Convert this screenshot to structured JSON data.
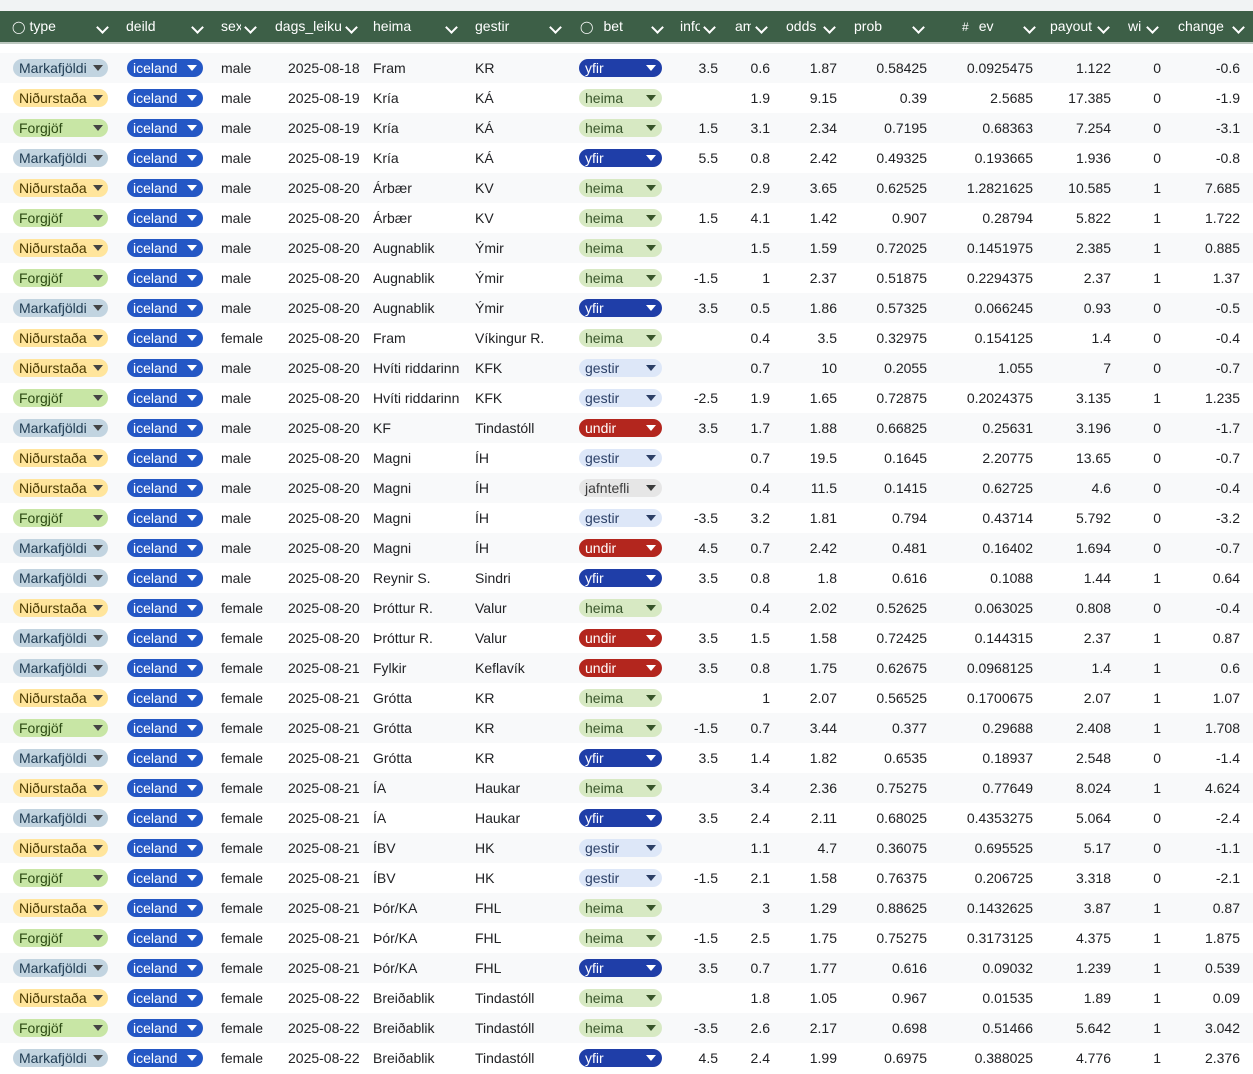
{
  "header": {
    "type_icon": "◯",
    "bet_icon": "◯",
    "ev_icon": "#",
    "columns": {
      "type": "type",
      "deild": "deild",
      "sex": "sex",
      "dags": "dags_leiku",
      "heima": "heima",
      "gestir": "gestir",
      "bet": "bet",
      "info": "info",
      "amt": "amt",
      "odds": "odds",
      "prob": "prob",
      "ev": "ev",
      "payout": "payout",
      "win": "win",
      "change": "change"
    }
  },
  "colors": {
    "header_bg": "#3d5f47",
    "type_markafjoldi": "#c2d4e0",
    "type_nidurstada": "#ffe59c",
    "type_forgjof": "#c8e6a5",
    "deild_iceland": "#2457c5",
    "bet_yfir": "#1f3ea8",
    "bet_undir": "#b3261e",
    "bet_heima": "#d7e9c3",
    "bet_gestir": "#dde7f8",
    "bet_jafntefli": "#e6e6e6"
  },
  "rows": [
    {
      "type": "Markafjöldi",
      "deild": "iceland",
      "sex": "male",
      "date": "2025-08-18",
      "heima": "Fram",
      "gestir": "KR",
      "bet": "yfir",
      "info": "3.5",
      "amt": "0.6",
      "odds": "1.87",
      "prob": "0.58425",
      "ev": "0.0925475",
      "payout": "1.122",
      "win": "0",
      "change": "-0.6"
    },
    {
      "type": "Niðurstaða",
      "deild": "iceland",
      "sex": "male",
      "date": "2025-08-19",
      "heima": "Kría",
      "gestir": "KÁ",
      "bet": "heima",
      "info": "",
      "amt": "1.9",
      "odds": "9.15",
      "prob": "0.39",
      "ev": "2.5685",
      "payout": "17.385",
      "win": "0",
      "change": "-1.9"
    },
    {
      "type": "Forgjöf",
      "deild": "iceland",
      "sex": "male",
      "date": "2025-08-19",
      "heima": "Kría",
      "gestir": "KÁ",
      "bet": "heima",
      "info": "1.5",
      "amt": "3.1",
      "odds": "2.34",
      "prob": "0.7195",
      "ev": "0.68363",
      "payout": "7.254",
      "win": "0",
      "change": "-3.1"
    },
    {
      "type": "Markafjöldi",
      "deild": "iceland",
      "sex": "male",
      "date": "2025-08-19",
      "heima": "Kría",
      "gestir": "KÁ",
      "bet": "yfir",
      "info": "5.5",
      "amt": "0.8",
      "odds": "2.42",
      "prob": "0.49325",
      "ev": "0.193665",
      "payout": "1.936",
      "win": "0",
      "change": "-0.8"
    },
    {
      "type": "Niðurstaða",
      "deild": "iceland",
      "sex": "male",
      "date": "2025-08-20",
      "heima": "Árbær",
      "gestir": "KV",
      "bet": "heima",
      "info": "",
      "amt": "2.9",
      "odds": "3.65",
      "prob": "0.62525",
      "ev": "1.2821625",
      "payout": "10.585",
      "win": "1",
      "change": "7.685"
    },
    {
      "type": "Forgjöf",
      "deild": "iceland",
      "sex": "male",
      "date": "2025-08-20",
      "heima": "Árbær",
      "gestir": "KV",
      "bet": "heima",
      "info": "1.5",
      "amt": "4.1",
      "odds": "1.42",
      "prob": "0.907",
      "ev": "0.28794",
      "payout": "5.822",
      "win": "1",
      "change": "1.722"
    },
    {
      "type": "Niðurstaða",
      "deild": "iceland",
      "sex": "male",
      "date": "2025-08-20",
      "heima": "Augnablik",
      "gestir": "Ýmir",
      "bet": "heima",
      "info": "",
      "amt": "1.5",
      "odds": "1.59",
      "prob": "0.72025",
      "ev": "0.1451975",
      "payout": "2.385",
      "win": "1",
      "change": "0.885"
    },
    {
      "type": "Forgjöf",
      "deild": "iceland",
      "sex": "male",
      "date": "2025-08-20",
      "heima": "Augnablik",
      "gestir": "Ýmir",
      "bet": "heima",
      "info": "-1.5",
      "amt": "1",
      "odds": "2.37",
      "prob": "0.51875",
      "ev": "0.2294375",
      "payout": "2.37",
      "win": "1",
      "change": "1.37"
    },
    {
      "type": "Markafjöldi",
      "deild": "iceland",
      "sex": "male",
      "date": "2025-08-20",
      "heima": "Augnablik",
      "gestir": "Ýmir",
      "bet": "yfir",
      "info": "3.5",
      "amt": "0.5",
      "odds": "1.86",
      "prob": "0.57325",
      "ev": "0.066245",
      "payout": "0.93",
      "win": "0",
      "change": "-0.5"
    },
    {
      "type": "Niðurstaða",
      "deild": "iceland",
      "sex": "female",
      "date": "2025-08-20",
      "heima": "Fram",
      "gestir": "Víkingur R.",
      "bet": "heima",
      "info": "",
      "amt": "0.4",
      "odds": "3.5",
      "prob": "0.32975",
      "ev": "0.154125",
      "payout": "1.4",
      "win": "0",
      "change": "-0.4"
    },
    {
      "type": "Niðurstaða",
      "deild": "iceland",
      "sex": "male",
      "date": "2025-08-20",
      "heima": "Hvíti riddarinn",
      "gestir": "KFK",
      "bet": "gestir",
      "info": "",
      "amt": "0.7",
      "odds": "10",
      "prob": "0.2055",
      "ev": "1.055",
      "payout": "7",
      "win": "0",
      "change": "-0.7"
    },
    {
      "type": "Forgjöf",
      "deild": "iceland",
      "sex": "male",
      "date": "2025-08-20",
      "heima": "Hvíti riddarinn",
      "gestir": "KFK",
      "bet": "gestir",
      "info": "-2.5",
      "amt": "1.9",
      "odds": "1.65",
      "prob": "0.72875",
      "ev": "0.2024375",
      "payout": "3.135",
      "win": "1",
      "change": "1.235"
    },
    {
      "type": "Markafjöldi",
      "deild": "iceland",
      "sex": "male",
      "date": "2025-08-20",
      "heima": "KF",
      "gestir": "Tindastóll",
      "bet": "undir",
      "info": "3.5",
      "amt": "1.7",
      "odds": "1.88",
      "prob": "0.66825",
      "ev": "0.25631",
      "payout": "3.196",
      "win": "0",
      "change": "-1.7"
    },
    {
      "type": "Niðurstaða",
      "deild": "iceland",
      "sex": "male",
      "date": "2025-08-20",
      "heima": "Magni",
      "gestir": "ÍH",
      "bet": "gestir",
      "info": "",
      "amt": "0.7",
      "odds": "19.5",
      "prob": "0.1645",
      "ev": "2.20775",
      "payout": "13.65",
      "win": "0",
      "change": "-0.7"
    },
    {
      "type": "Niðurstaða",
      "deild": "iceland",
      "sex": "male",
      "date": "2025-08-20",
      "heima": "Magni",
      "gestir": "ÍH",
      "bet": "jafntefli",
      "info": "",
      "amt": "0.4",
      "odds": "11.5",
      "prob": "0.1415",
      "ev": "0.62725",
      "payout": "4.6",
      "win": "0",
      "change": "-0.4"
    },
    {
      "type": "Forgjöf",
      "deild": "iceland",
      "sex": "male",
      "date": "2025-08-20",
      "heima": "Magni",
      "gestir": "ÍH",
      "bet": "gestir",
      "info": "-3.5",
      "amt": "3.2",
      "odds": "1.81",
      "prob": "0.794",
      "ev": "0.43714",
      "payout": "5.792",
      "win": "0",
      "change": "-3.2"
    },
    {
      "type": "Markafjöldi",
      "deild": "iceland",
      "sex": "male",
      "date": "2025-08-20",
      "heima": "Magni",
      "gestir": "ÍH",
      "bet": "undir",
      "info": "4.5",
      "amt": "0.7",
      "odds": "2.42",
      "prob": "0.481",
      "ev": "0.16402",
      "payout": "1.694",
      "win": "0",
      "change": "-0.7"
    },
    {
      "type": "Markafjöldi",
      "deild": "iceland",
      "sex": "male",
      "date": "2025-08-20",
      "heima": "Reynir S.",
      "gestir": "Sindri",
      "bet": "yfir",
      "info": "3.5",
      "amt": "0.8",
      "odds": "1.8",
      "prob": "0.616",
      "ev": "0.1088",
      "payout": "1.44",
      "win": "1",
      "change": "0.64"
    },
    {
      "type": "Niðurstaða",
      "deild": "iceland",
      "sex": "female",
      "date": "2025-08-20",
      "heima": "Þróttur R.",
      "gestir": "Valur",
      "bet": "heima",
      "info": "",
      "amt": "0.4",
      "odds": "2.02",
      "prob": "0.52625",
      "ev": "0.063025",
      "payout": "0.808",
      "win": "0",
      "change": "-0.4"
    },
    {
      "type": "Markafjöldi",
      "deild": "iceland",
      "sex": "female",
      "date": "2025-08-20",
      "heima": "Þróttur R.",
      "gestir": "Valur",
      "bet": "undir",
      "info": "3.5",
      "amt": "1.5",
      "odds": "1.58",
      "prob": "0.72425",
      "ev": "0.144315",
      "payout": "2.37",
      "win": "1",
      "change": "0.87"
    },
    {
      "type": "Markafjöldi",
      "deild": "iceland",
      "sex": "female",
      "date": "2025-08-21",
      "heima": "Fylkir",
      "gestir": "Keflavík",
      "bet": "undir",
      "info": "3.5",
      "amt": "0.8",
      "odds": "1.75",
      "prob": "0.62675",
      "ev": "0.0968125",
      "payout": "1.4",
      "win": "1",
      "change": "0.6"
    },
    {
      "type": "Niðurstaða",
      "deild": "iceland",
      "sex": "female",
      "date": "2025-08-21",
      "heima": "Grótta",
      "gestir": "KR",
      "bet": "heima",
      "info": "",
      "amt": "1",
      "odds": "2.07",
      "prob": "0.56525",
      "ev": "0.1700675",
      "payout": "2.07",
      "win": "1",
      "change": "1.07"
    },
    {
      "type": "Forgjöf",
      "deild": "iceland",
      "sex": "female",
      "date": "2025-08-21",
      "heima": "Grótta",
      "gestir": "KR",
      "bet": "heima",
      "info": "-1.5",
      "amt": "0.7",
      "odds": "3.44",
      "prob": "0.377",
      "ev": "0.29688",
      "payout": "2.408",
      "win": "1",
      "change": "1.708"
    },
    {
      "type": "Markafjöldi",
      "deild": "iceland",
      "sex": "female",
      "date": "2025-08-21",
      "heima": "Grótta",
      "gestir": "KR",
      "bet": "yfir",
      "info": "3.5",
      "amt": "1.4",
      "odds": "1.82",
      "prob": "0.6535",
      "ev": "0.18937",
      "payout": "2.548",
      "win": "0",
      "change": "-1.4"
    },
    {
      "type": "Niðurstaða",
      "deild": "iceland",
      "sex": "female",
      "date": "2025-08-21",
      "heima": "ÍA",
      "gestir": "Haukar",
      "bet": "heima",
      "info": "",
      "amt": "3.4",
      "odds": "2.36",
      "prob": "0.75275",
      "ev": "0.77649",
      "payout": "8.024",
      "win": "1",
      "change": "4.624"
    },
    {
      "type": "Markafjöldi",
      "deild": "iceland",
      "sex": "female",
      "date": "2025-08-21",
      "heima": "ÍA",
      "gestir": "Haukar",
      "bet": "yfir",
      "info": "3.5",
      "amt": "2.4",
      "odds": "2.11",
      "prob": "0.68025",
      "ev": "0.4353275",
      "payout": "5.064",
      "win": "0",
      "change": "-2.4"
    },
    {
      "type": "Niðurstaða",
      "deild": "iceland",
      "sex": "female",
      "date": "2025-08-21",
      "heima": "ÍBV",
      "gestir": "HK",
      "bet": "gestir",
      "info": "",
      "amt": "1.1",
      "odds": "4.7",
      "prob": "0.36075",
      "ev": "0.695525",
      "payout": "5.17",
      "win": "0",
      "change": "-1.1"
    },
    {
      "type": "Forgjöf",
      "deild": "iceland",
      "sex": "female",
      "date": "2025-08-21",
      "heima": "ÍBV",
      "gestir": "HK",
      "bet": "gestir",
      "info": "-1.5",
      "amt": "2.1",
      "odds": "1.58",
      "prob": "0.76375",
      "ev": "0.206725",
      "payout": "3.318",
      "win": "0",
      "change": "-2.1"
    },
    {
      "type": "Niðurstaða",
      "deild": "iceland",
      "sex": "female",
      "date": "2025-08-21",
      "heima": "Þór/KA",
      "gestir": "FHL",
      "bet": "heima",
      "info": "",
      "amt": "3",
      "odds": "1.29",
      "prob": "0.88625",
      "ev": "0.1432625",
      "payout": "3.87",
      "win": "1",
      "change": "0.87"
    },
    {
      "type": "Forgjöf",
      "deild": "iceland",
      "sex": "female",
      "date": "2025-08-21",
      "heima": "Þór/KA",
      "gestir": "FHL",
      "bet": "heima",
      "info": "-1.5",
      "amt": "2.5",
      "odds": "1.75",
      "prob": "0.75275",
      "ev": "0.3173125",
      "payout": "4.375",
      "win": "1",
      "change": "1.875"
    },
    {
      "type": "Markafjöldi",
      "deild": "iceland",
      "sex": "female",
      "date": "2025-08-21",
      "heima": "Þór/KA",
      "gestir": "FHL",
      "bet": "yfir",
      "info": "3.5",
      "amt": "0.7",
      "odds": "1.77",
      "prob": "0.616",
      "ev": "0.09032",
      "payout": "1.239",
      "win": "1",
      "change": "0.539"
    },
    {
      "type": "Niðurstaða",
      "deild": "iceland",
      "sex": "female",
      "date": "2025-08-22",
      "heima": "Breiðablik",
      "gestir": "Tindastóll",
      "bet": "heima",
      "info": "",
      "amt": "1.8",
      "odds": "1.05",
      "prob": "0.967",
      "ev": "0.01535",
      "payout": "1.89",
      "win": "1",
      "change": "0.09"
    },
    {
      "type": "Forgjöf",
      "deild": "iceland",
      "sex": "female",
      "date": "2025-08-22",
      "heima": "Breiðablik",
      "gestir": "Tindastóll",
      "bet": "heima",
      "info": "-3.5",
      "amt": "2.6",
      "odds": "2.17",
      "prob": "0.698",
      "ev": "0.51466",
      "payout": "5.642",
      "win": "1",
      "change": "3.042"
    },
    {
      "type": "Markafjöldi",
      "deild": "iceland",
      "sex": "female",
      "date": "2025-08-22",
      "heima": "Breiðablik",
      "gestir": "Tindastóll",
      "bet": "yfir",
      "info": "4.5",
      "amt": "2.4",
      "odds": "1.99",
      "prob": "0.6975",
      "ev": "0.388025",
      "payout": "4.776",
      "win": "1",
      "change": "2.376"
    }
  ]
}
